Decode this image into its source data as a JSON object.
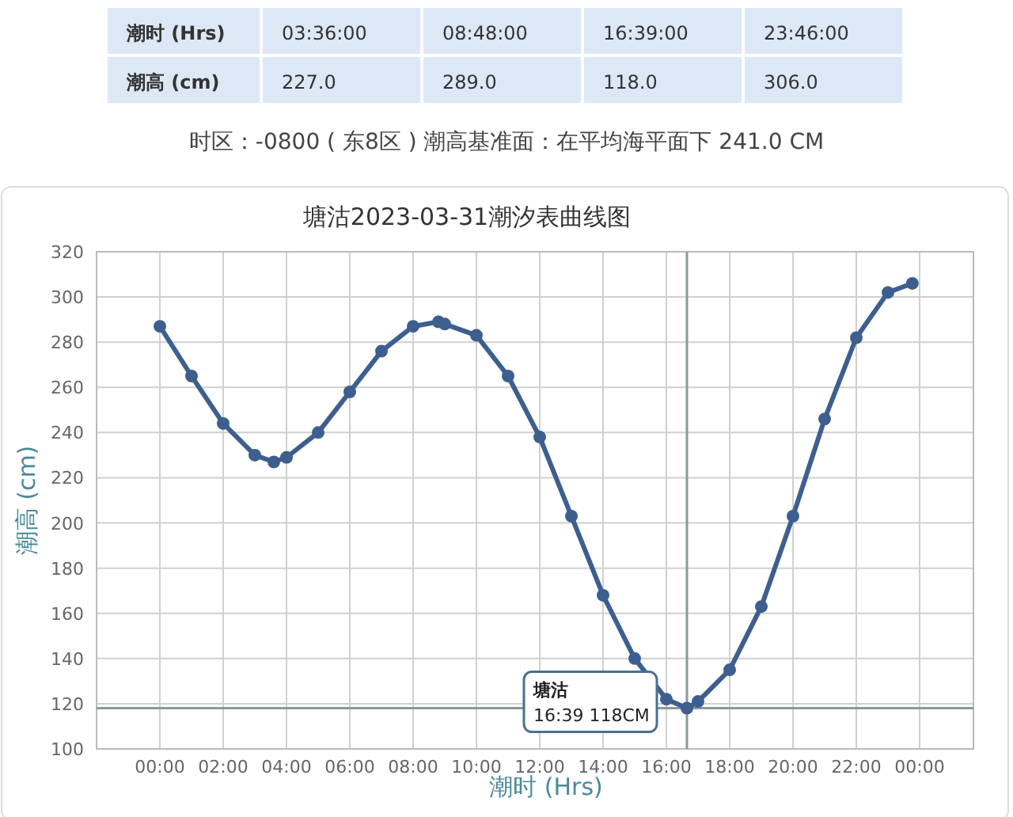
{
  "chart_data": [
    {
      "type": "other",
      "annotations": [
        "潮时 (Hrs)",
        "03:36:00",
        "08:48:00",
        "16:39:00",
        "23:46:00",
        "潮高 (cm)",
        "227.0",
        "289.0",
        "118.0",
        "306.0",
        "时区：-0800 ( 东8区 ) 潮高基准面：在平均海平面下 241.0 CM"
      ]
    },
    {
      "type": "line",
      "title": "塘沽2023-03-31潮汐表曲线图",
      "xlabel": "潮时 (Hrs)",
      "ylabel": "潮高 (cm)",
      "series": [
        {
          "color": "#3d5f8f",
          "x": [
            0,
            1,
            2,
            3,
            3.6,
            4,
            5,
            6,
            7,
            8,
            8.8,
            9,
            10,
            11,
            12,
            13,
            14,
            15,
            16,
            16.65,
            17,
            18,
            19,
            20,
            21,
            22,
            23,
            23.77
          ],
          "values": [
            287,
            265,
            244,
            230,
            227,
            229,
            240,
            258,
            276,
            287,
            289,
            288,
            283,
            265,
            238,
            203,
            168,
            140,
            122,
            118,
            121,
            135,
            163,
            203,
            246,
            282,
            302,
            306
          ]
        }
      ],
      "xlim": [
        -2,
        25.7
      ],
      "ylim": [
        100,
        320
      ],
      "xticks": [
        {
          "value": 0,
          "label": "00:00"
        },
        {
          "value": 2,
          "label": "02:00"
        },
        {
          "value": 4,
          "label": "04:00"
        },
        {
          "value": 6,
          "label": "06:00"
        },
        {
          "value": 8,
          "label": "08:00"
        },
        {
          "value": 10,
          "label": "10:00"
        },
        {
          "value": 12,
          "label": "12:00"
        },
        {
          "value": 14,
          "label": "14:00"
        },
        {
          "value": 16,
          "label": "16:00"
        },
        {
          "value": 18,
          "label": "18:00"
        },
        {
          "value": 20,
          "label": "20:00"
        },
        {
          "value": 22,
          "label": "22:00"
        },
        {
          "value": 24,
          "label": "00:00"
        }
      ],
      "yticks": [
        100,
        120,
        140,
        160,
        180,
        200,
        220,
        240,
        260,
        280,
        300,
        320
      ],
      "grid": true,
      "marker": "circle",
      "line_style": "solid",
      "ref_lines": [
        {
          "axis": "x",
          "value": 16.65,
          "color": "#8a9a9a"
        },
        {
          "axis": "y",
          "value": 118,
          "color": "#8a9a9a"
        }
      ],
      "annotations": [
        {
          "text": "塘沽\n16:39 118CM",
          "x": 16.65,
          "y": 118
        }
      ]
    }
  ]
}
